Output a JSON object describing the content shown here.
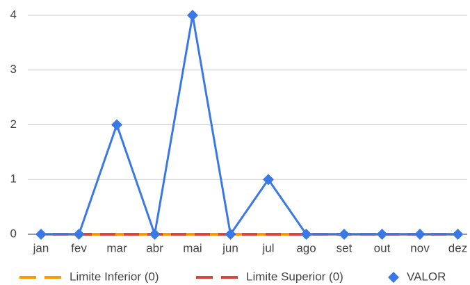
{
  "chart_data": {
    "type": "line",
    "categories": [
      "jan",
      "fev",
      "mar",
      "abr",
      "mai",
      "jun",
      "jul",
      "ago",
      "set",
      "out",
      "nov",
      "dez"
    ],
    "series": [
      {
        "name": "Limite Inferior (0)",
        "color": "#ff9900",
        "dashed": true,
        "values": [
          0,
          0,
          0,
          0,
          0,
          0,
          0,
          0,
          0,
          0,
          0,
          0
        ]
      },
      {
        "name": "Limite Superior (0)",
        "color": "#db4437",
        "dashed": true,
        "values": [
          0,
          0,
          0,
          0,
          0,
          0,
          0,
          0,
          0,
          0,
          0,
          0
        ]
      },
      {
        "name": "VALOR",
        "color": "#3b78e7",
        "marker": "diamond",
        "values": [
          0,
          0,
          2,
          0,
          4,
          0,
          1,
          0,
          0,
          0,
          0,
          0
        ]
      }
    ],
    "ylim": [
      0,
      4
    ],
    "yticks": [
      0,
      1,
      2,
      3,
      4
    ],
    "grid": true,
    "legend": "bottom"
  }
}
